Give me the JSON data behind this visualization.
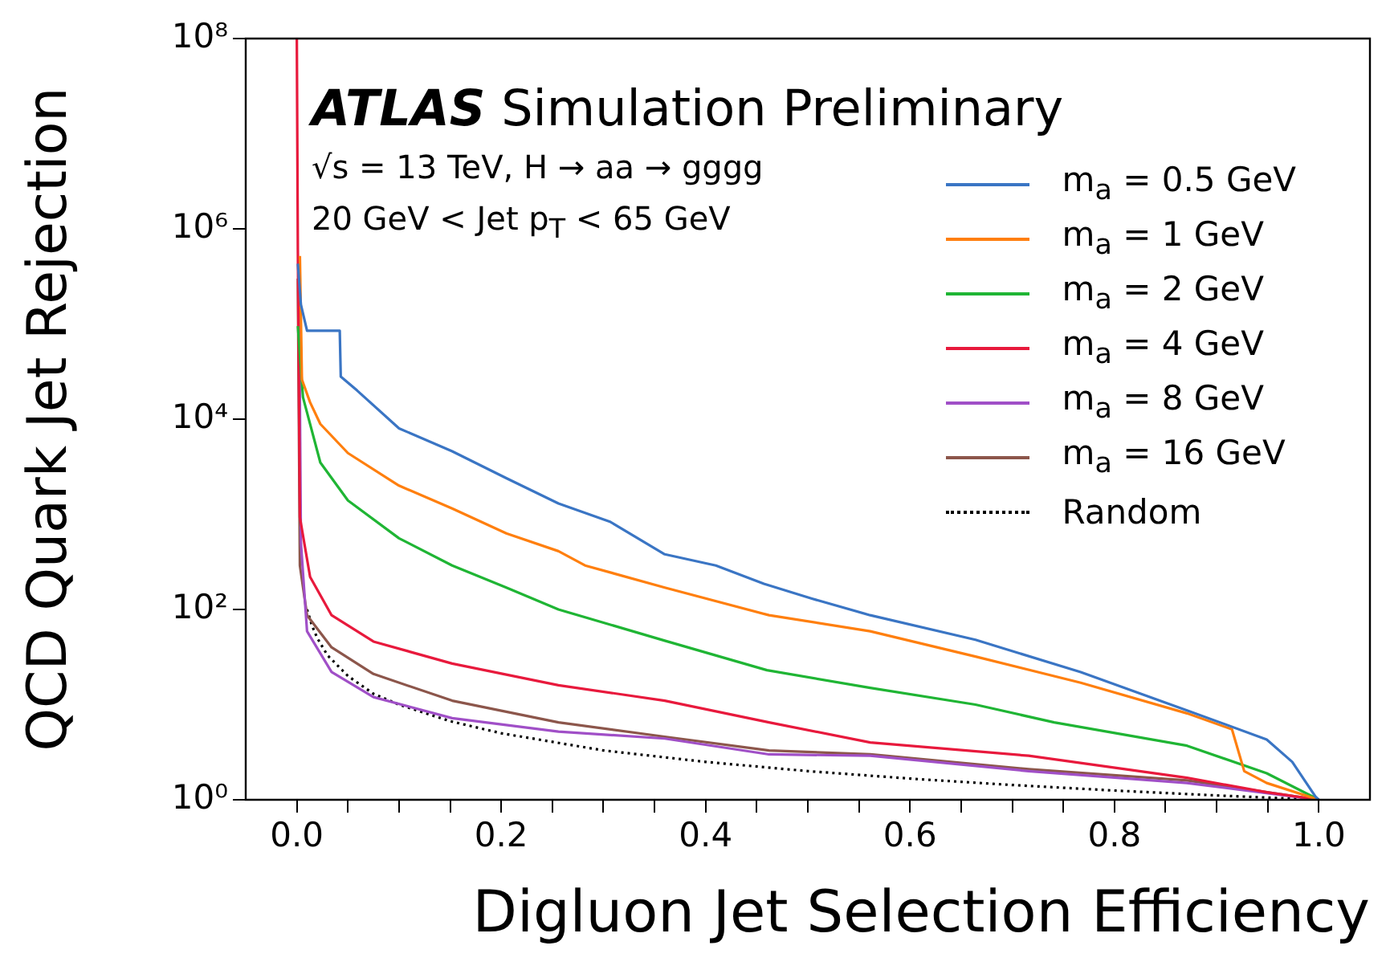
{
  "chart_data": {
    "type": "line",
    "xlabel": "Digluon Jet Selection Efficiency",
    "ylabel": "QCD Quark Jet Rejection",
    "annotations": [
      "ATLAS Simulation Preliminary",
      "√s = 13 TeV, H → aa → gggg",
      "20 GeV < Jet p$_{T}$ < 65 GeV"
    ],
    "log": "y",
    "grid": false,
    "legend": "top right",
    "marker": "none",
    "xlim": [
      -0.05,
      1.05
    ],
    "ylim": [
      1,
      100000000
    ],
    "xticks": [
      {
        "value": 0,
        "label": "0.0"
      },
      {
        "value": 0.05,
        "label": null
      },
      {
        "value": 0.1,
        "label": null
      },
      {
        "value": 0.15,
        "label": null
      },
      {
        "value": 0.2,
        "label": "0.2"
      },
      {
        "value": 0.25,
        "label": null
      },
      {
        "value": 0.3,
        "label": null
      },
      {
        "value": 0.35,
        "label": null
      },
      {
        "value": 0.4,
        "label": "0.4"
      },
      {
        "value": 0.45,
        "label": null
      },
      {
        "value": 0.5,
        "label": null
      },
      {
        "value": 0.55,
        "label": null
      },
      {
        "value": 0.6,
        "label": "0.6"
      },
      {
        "value": 0.65,
        "label": null
      },
      {
        "value": 0.7,
        "label": null
      },
      {
        "value": 0.75,
        "label": null
      },
      {
        "value": 0.8,
        "label": "0.8"
      },
      {
        "value": 0.85,
        "label": null
      },
      {
        "value": 0.9,
        "label": null
      },
      {
        "value": 0.95,
        "label": null
      },
      {
        "value": 1,
        "label": "1.0"
      }
    ],
    "yticks": [
      {
        "value": 1,
        "label": "10⁰"
      },
      {
        "value": 100,
        "label": "10²"
      },
      {
        "value": 10000,
        "label": "10⁴"
      },
      {
        "value": 1000000,
        "label": "10⁶"
      },
      {
        "value": 100000000,
        "label": "10⁸"
      }
    ],
    "series": [
      {
        "name": "m$_{a}$ = 0.5 GeV",
        "color": "#3a75c4",
        "x": [
          0.001,
          0.004,
          0.01,
          0.042,
          0.043,
          0.059,
          0.1,
          0.152,
          0.205,
          0.256,
          0.307,
          0.36,
          0.41,
          0.457,
          0.504,
          0.561,
          0.664,
          0.767,
          0.871,
          0.949,
          0.974,
          0.997,
          1
        ],
        "values": [
          430000,
          160000,
          85000,
          85000,
          28000,
          20000,
          8000,
          4600,
          2400,
          1300,
          830,
          380,
          290,
          186,
          130,
          87,
          48,
          22,
          8.7,
          4.3,
          2.5,
          1.07,
          1
        ]
      },
      {
        "name": "m$_{a}$ = 1 GeV",
        "color": "#ff7f0e",
        "x": [
          0.003,
          0.005,
          0.013,
          0.023,
          0.05,
          0.1,
          0.152,
          0.205,
          0.256,
          0.282,
          0.36,
          0.462,
          0.561,
          0.664,
          0.767,
          0.871,
          0.915,
          0.927,
          0.949,
          1
        ],
        "values": [
          520000,
          26000,
          15000,
          8900,
          4400,
          2000,
          1150,
          630,
          410,
          290,
          170,
          87,
          59,
          32,
          17,
          8.1,
          5.5,
          2,
          1.5,
          1
        ]
      },
      {
        "name": "m$_{a}$ = 2 GeV",
        "color": "#1fb534",
        "x": [
          0.001,
          0.006,
          0.023,
          0.05,
          0.1,
          0.152,
          0.205,
          0.256,
          0.36,
          0.46,
          0.561,
          0.664,
          0.741,
          0.871,
          0.949,
          1
        ],
        "values": [
          95000,
          17000,
          3500,
          1400,
          560,
          290,
          170,
          100,
          47,
          23,
          15,
          10,
          6.5,
          3.7,
          1.9,
          1
        ]
      },
      {
        "name": "m$_{a}$ = 4 GeV",
        "color": "#e8193c",
        "x": [
          0,
          0.001,
          0.003,
          0.013,
          0.034,
          0.075,
          0.152,
          0.256,
          0.36,
          0.462,
          0.561,
          0.716,
          0.871,
          0.949,
          1
        ],
        "values": [
          100000000,
          600000,
          930,
          220,
          87,
          46,
          27,
          16,
          11,
          6.5,
          4,
          2.9,
          1.7,
          1.2,
          1
        ]
      },
      {
        "name": "m$_{a}$ = 8 GeV",
        "color": "#a04fc7",
        "x": [
          0.002,
          0.004,
          0.01,
          0.034,
          0.075,
          0.152,
          0.256,
          0.36,
          0.462,
          0.561,
          0.716,
          0.871,
          1
        ],
        "values": [
          470000,
          500,
          59,
          22,
          12,
          7.2,
          5.2,
          4.4,
          3,
          2.9,
          2,
          1.5,
          1
        ]
      },
      {
        "name": "m$_{a}$ = 16 GeV",
        "color": "#8c564b",
        "x": [
          0.001,
          0.003,
          0.01,
          0.034,
          0.075,
          0.152,
          0.256,
          0.36,
          0.462,
          0.561,
          0.716,
          0.871,
          1
        ],
        "values": [
          300000,
          290,
          87,
          40,
          21,
          11,
          6.5,
          4.6,
          3.3,
          3,
          2.1,
          1.6,
          1
        ]
      },
      {
        "name": "Random",
        "color": "#000000",
        "line_style": "dotted",
        "x": [
          0.01,
          0.015,
          0.02,
          0.03,
          0.05,
          0.075,
          0.1,
          0.15,
          0.2,
          0.3,
          0.4,
          0.5,
          0.6,
          0.7,
          0.8,
          0.9,
          1
        ],
        "values": [
          100,
          67,
          50,
          33,
          20,
          13,
          10,
          6.7,
          5,
          3.3,
          2.5,
          2,
          1.67,
          1.43,
          1.25,
          1.11,
          1
        ]
      }
    ]
  }
}
